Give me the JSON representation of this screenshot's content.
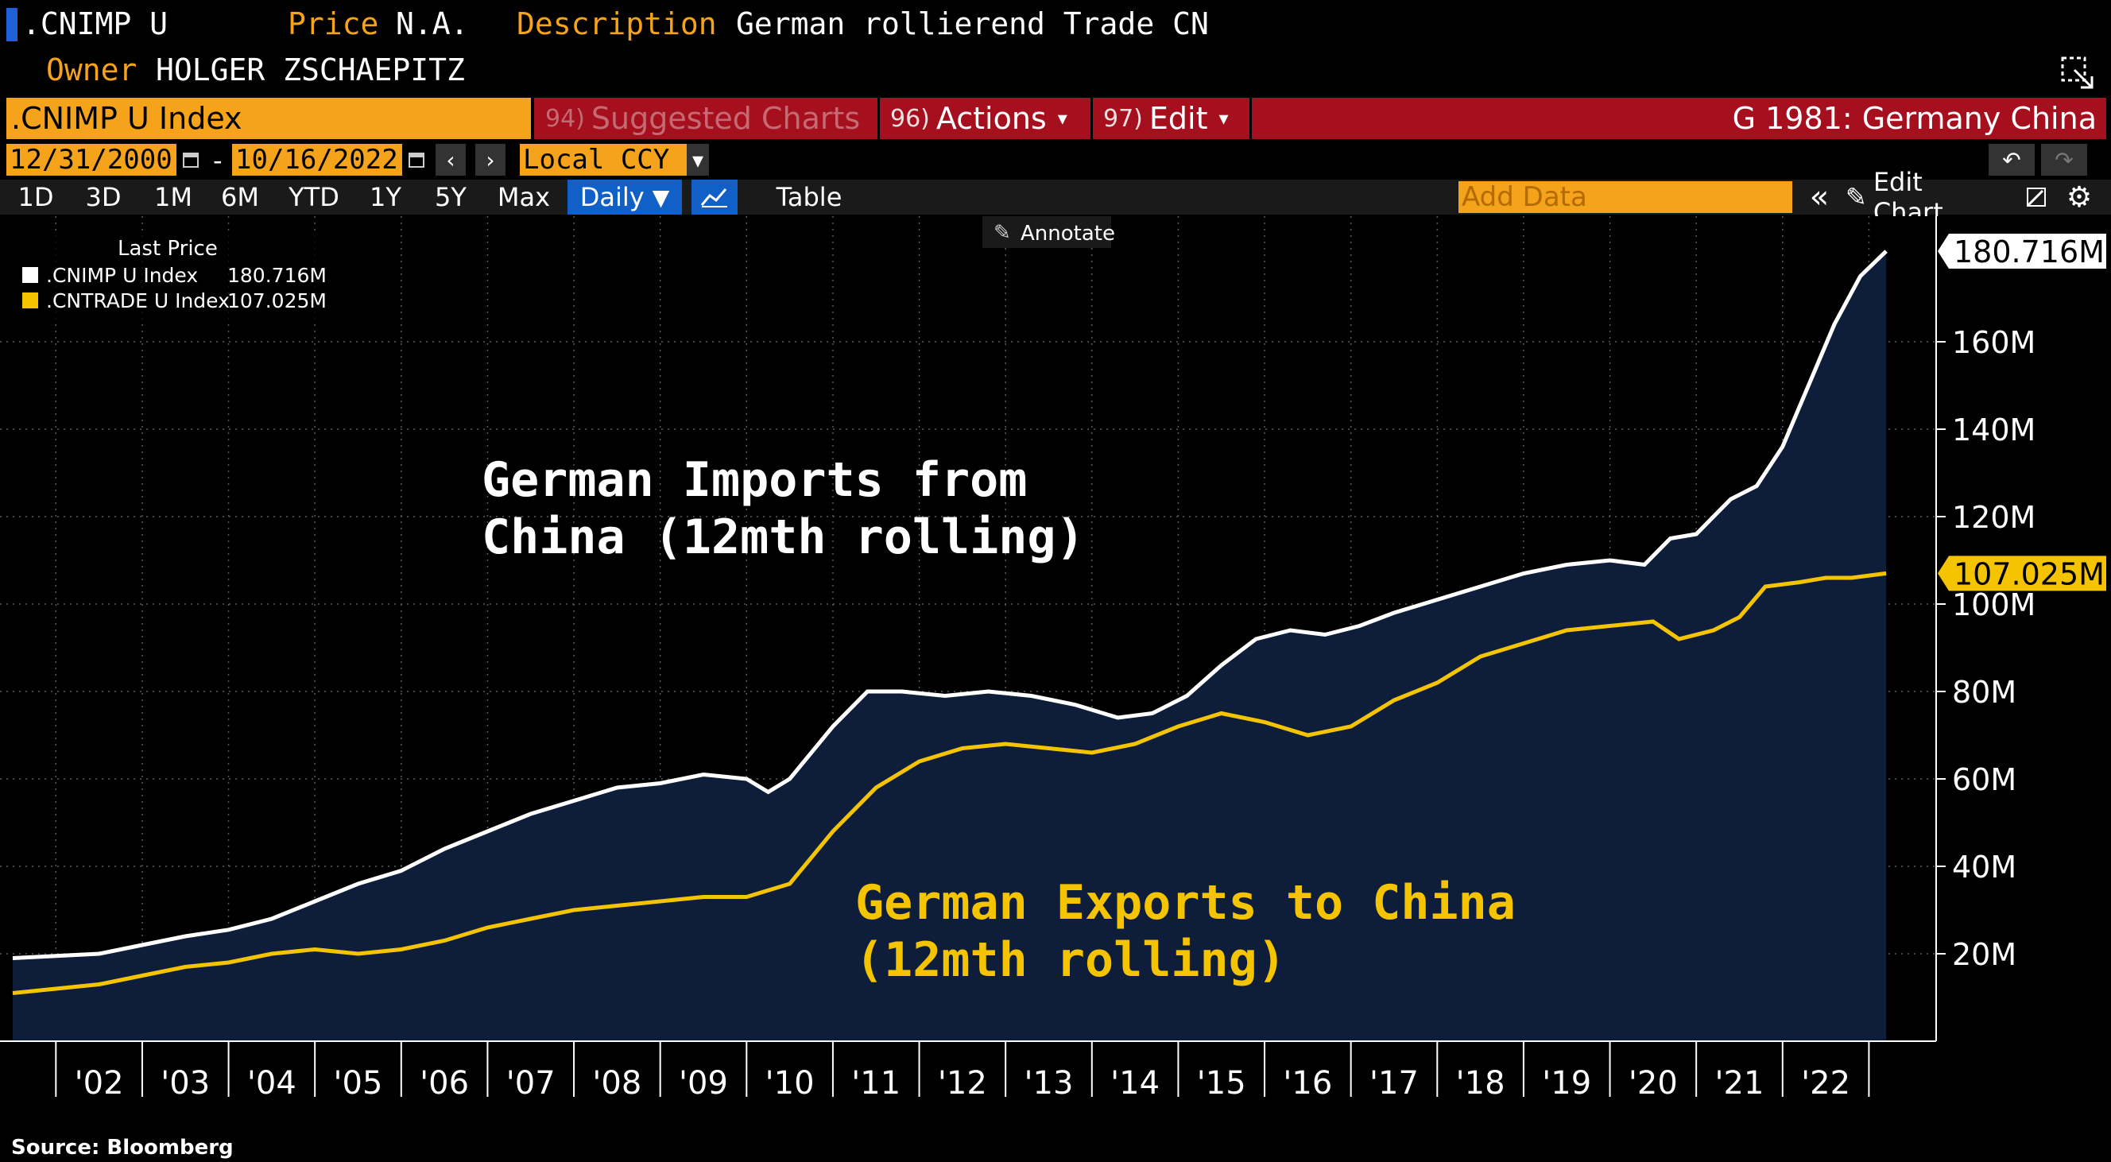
{
  "header": {
    "ticker": ".CNIMP U",
    "price_label": "Price",
    "price_value": "N.A.",
    "description_label": "Description",
    "description_value": "German rollierend Trade CN",
    "owner_label": "Owner",
    "owner_value": "HOLGER ZSCHAEPITZ"
  },
  "toolbar": {
    "security": ".CNIMP U Index",
    "suggested_num": "94)",
    "suggested_label": "Suggested Charts",
    "actions_num": "96)",
    "actions_label": "Actions",
    "edit_num": "97)",
    "edit_label": "Edit",
    "page_title": "G 1981: Germany China"
  },
  "dates": {
    "start": "12/31/2000",
    "dash": "-",
    "end": "10/16/2022",
    "currency": "Local CCY"
  },
  "ranges": [
    "1D",
    "3D",
    "1M",
    "6M",
    "YTD",
    "1Y",
    "5Y",
    "Max"
  ],
  "period": "Daily",
  "table_label": "Table",
  "add_data_placeholder": "Add Data",
  "edit_chart_label": "Edit Chart",
  "annotate_label": "Annotate",
  "legend": {
    "title": "Last Price",
    "rows": [
      {
        "name": ".CNIMP U Index",
        "value": "180.716M",
        "color": "#ffffff"
      },
      {
        "name": ".CNTRADE U Index",
        "value": "107.025M",
        "color": "#f5c400"
      }
    ]
  },
  "annotations": {
    "imports_line1": "German Imports from",
    "imports_line2": "China (12mth rolling)",
    "exports_line1": "German Exports to China",
    "exports_line2": "(12mth rolling)"
  },
  "last_labels": {
    "imports": "180.716M",
    "exports": "107.025M"
  },
  "source": "Source: Bloomberg",
  "colors": {
    "imports": "#ffffff",
    "exports": "#f5c400",
    "area": "#0e1e3a",
    "accent": "#f5a31a",
    "toolbar_red": "#a50f1e"
  },
  "chart_data": {
    "type": "line",
    "x_unit": "year",
    "y_unit": "M",
    "xlim": [
      2001.0,
      2022.8
    ],
    "ylim": [
      0,
      190
    ],
    "yticks": [
      20,
      40,
      60,
      80,
      100,
      120,
      140,
      160
    ],
    "ytick_labels": [
      "20M",
      "40M",
      "60M",
      "80M",
      "100M",
      "120M",
      "140M",
      "160M"
    ],
    "xticks": [
      2002,
      2003,
      2004,
      2005,
      2006,
      2007,
      2008,
      2009,
      2010,
      2011,
      2012,
      2013,
      2014,
      2015,
      2016,
      2017,
      2018,
      2019,
      2020,
      2021,
      2022
    ],
    "xtick_labels": [
      "'02",
      "'03",
      "'04",
      "'05",
      "'06",
      "'07",
      "'08",
      "'09",
      "'10",
      "'11",
      "'12",
      "'13",
      "'14",
      "'15",
      "'16",
      "'17",
      "'18",
      "'19",
      "'20",
      "'21",
      "'22"
    ],
    "series": [
      {
        "name": ".CNIMP U Index",
        "x": [
          2001.0,
          2001.5,
          2002.0,
          2002.5,
          2003.0,
          2003.5,
          2004.0,
          2004.5,
          2005.0,
          2005.5,
          2006.0,
          2006.5,
          2007.0,
          2007.5,
          2008.0,
          2008.5,
          2009.0,
          2009.5,
          2009.75,
          2010.0,
          2010.5,
          2010.9,
          2011.3,
          2011.8,
          2012.3,
          2012.8,
          2013.3,
          2013.8,
          2014.2,
          2014.6,
          2015.0,
          2015.4,
          2015.8,
          2016.2,
          2016.6,
          2017.0,
          2017.5,
          2018.0,
          2018.5,
          2019.0,
          2019.5,
          2019.9,
          2020.2,
          2020.5,
          2020.9,
          2021.2,
          2021.5,
          2021.8,
          2022.1,
          2022.4,
          2022.7
        ],
        "y": [
          19,
          19.5,
          20,
          22,
          24,
          25.5,
          28,
          32,
          36,
          39,
          44,
          48,
          52,
          55,
          58,
          59,
          61,
          60,
          57,
          60,
          72,
          80,
          80,
          79,
          80,
          79,
          77,
          74,
          75,
          79,
          86,
          92,
          94,
          93,
          95,
          98,
          101,
          104,
          107,
          109,
          110,
          109,
          115,
          116,
          124,
          127,
          136,
          150,
          164,
          175,
          180.716
        ]
      },
      {
        "name": ".CNTRADE U Index",
        "x": [
          2001.0,
          2001.5,
          2002.0,
          2002.5,
          2003.0,
          2003.5,
          2004.0,
          2004.5,
          2005.0,
          2005.5,
          2006.0,
          2006.5,
          2007.0,
          2007.5,
          2008.0,
          2008.5,
          2009.0,
          2009.5,
          2010.0,
          2010.5,
          2011.0,
          2011.5,
          2012.0,
          2012.5,
          2013.0,
          2013.5,
          2014.0,
          2014.5,
          2015.0,
          2015.5,
          2016.0,
          2016.5,
          2017.0,
          2017.5,
          2018.0,
          2018.5,
          2019.0,
          2019.5,
          2020.0,
          2020.3,
          2020.7,
          2021.0,
          2021.3,
          2021.7,
          2022.0,
          2022.3,
          2022.7
        ],
        "y": [
          11,
          12,
          13,
          15,
          17,
          18,
          20,
          21,
          20,
          21,
          23,
          26,
          28,
          30,
          31,
          32,
          33,
          33,
          36,
          48,
          58,
          64,
          67,
          68,
          67,
          66,
          68,
          72,
          75,
          73,
          70,
          72,
          78,
          82,
          88,
          91,
          94,
          95,
          96,
          92,
          94,
          97,
          104,
          105,
          106,
          106,
          107.025
        ]
      }
    ]
  }
}
